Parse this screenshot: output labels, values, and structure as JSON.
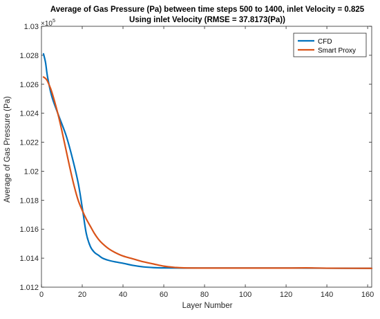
{
  "chart_data": {
    "type": "line",
    "title": "Average of Gas Pressure (Pa) between time steps 500 to 1400, inlet Velocity = 0.825",
    "subtitle": "Using inlet Velocity (RMSE = 37.8173(Pa))",
    "xlabel": "Layer Number",
    "ylabel": "Average of Gas Pressure (Pa)",
    "y_exponent_label": "×10",
    "y_exponent": "5",
    "xlim": [
      0,
      162
    ],
    "ylim": [
      1.012,
      1.03
    ],
    "x_ticks": [
      0,
      20,
      40,
      60,
      80,
      100,
      120,
      140,
      160
    ],
    "x_tick_labels": [
      "0",
      "20",
      "40",
      "60",
      "80",
      "100",
      "120",
      "140",
      "160"
    ],
    "y_ticks": [
      1.012,
      1.014,
      1.016,
      1.018,
      1.02,
      1.022,
      1.024,
      1.026,
      1.028,
      1.03
    ],
    "y_tick_labels": [
      "1.012",
      "1.014",
      "1.016",
      "1.018",
      "1.02",
      "1.022",
      "1.024",
      "1.026",
      "1.028",
      "1.03"
    ],
    "grid": false,
    "legend_position": "top-right",
    "series": [
      {
        "name": "CFD",
        "color": "#0072BD",
        "x": [
          1,
          2,
          3,
          5,
          8,
          12,
          15,
          18,
          20,
          22,
          24,
          26,
          28,
          30,
          33,
          36,
          40,
          45,
          50,
          55,
          60,
          70,
          80,
          100,
          120,
          140,
          162
        ],
        "y": [
          1.0281,
          1.0275,
          1.0265,
          1.0252,
          1.024,
          1.0225,
          1.021,
          1.0192,
          1.0175,
          1.0157,
          1.0148,
          1.0144,
          1.0142,
          1.014,
          1.01385,
          1.01375,
          1.01365,
          1.0135,
          1.0134,
          1.01335,
          1.01333,
          1.01332,
          1.01332,
          1.01332,
          1.01332,
          1.01331,
          1.0133
        ]
      },
      {
        "name": "Smart Proxy",
        "color": "#D95319",
        "x": [
          1,
          2,
          3,
          5,
          8,
          10,
          12,
          14,
          16,
          18,
          20,
          22,
          24,
          26,
          28,
          30,
          33,
          36,
          40,
          45,
          50,
          55,
          60,
          65,
          70,
          80,
          100,
          120,
          130,
          140,
          162
        ],
        "y": [
          1.0265,
          1.0264,
          1.0262,
          1.0255,
          1.024,
          1.0228,
          1.0215,
          1.0202,
          1.019,
          1.018,
          1.0173,
          1.0167,
          1.0162,
          1.0157,
          1.0153,
          1.015,
          1.01465,
          1.0144,
          1.01415,
          1.01395,
          1.01375,
          1.0136,
          1.01345,
          1.01337,
          1.01333,
          1.01332,
          1.01332,
          1.01332,
          1.01333,
          1.01331,
          1.0133
        ]
      }
    ]
  }
}
